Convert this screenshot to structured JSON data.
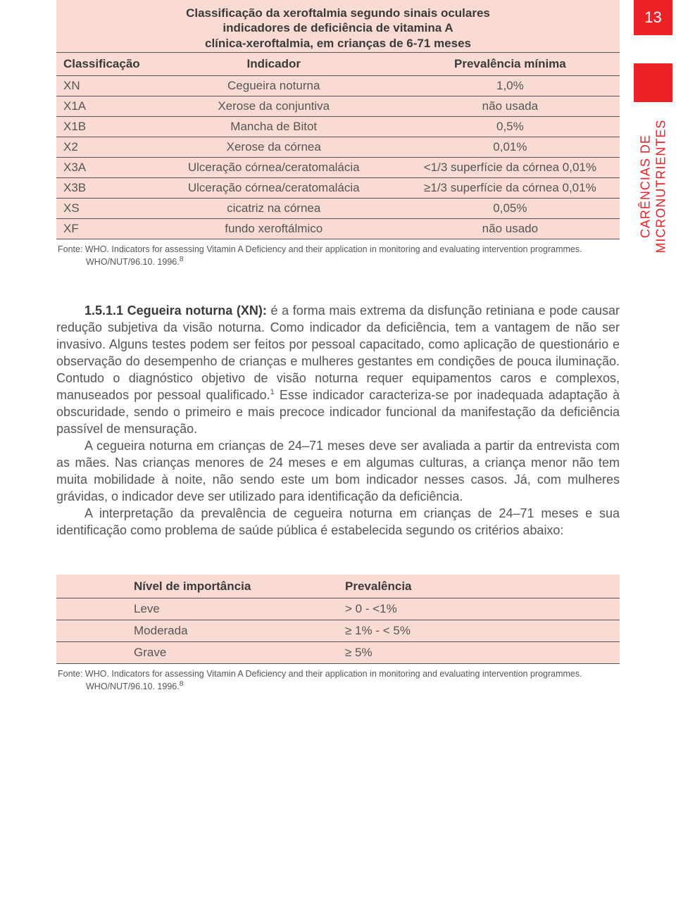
{
  "page_number": "13",
  "vertical_label": "CARÊNCIAS DE\nMICRONUTRIENTES",
  "colors": {
    "accent_red": "#ec2227",
    "table_bg": "#f9dbd3",
    "text_body": "#555555",
    "text_heading": "#3a3a3a",
    "border": "#555555",
    "page_bg": "#ffffff"
  },
  "typography": {
    "body_fontsize_pt": 14,
    "table_fontsize_pt": 13,
    "source_fontsize_pt": 9,
    "page_number_fontsize_pt": 16
  },
  "table1": {
    "title_line1": "Classificação da xeroftalmia segundo sinais oculares",
    "title_line2": "indicadores de deficiência de vitamina A",
    "title_line3": "clínica-xeroftalmia, em crianças de 6-71 meses",
    "columns": [
      "Classificação",
      "Indicador",
      "Prevalência mínima"
    ],
    "col_widths_pct": [
      14,
      46,
      40
    ],
    "rows": [
      [
        "XN",
        "Cegueira noturna",
        "1,0%"
      ],
      [
        "X1A",
        "Xerose da conjuntiva",
        "não usada"
      ],
      [
        "X1B",
        "Mancha de Bitot",
        "0,5%"
      ],
      [
        "X2",
        "Xerose da córnea",
        "0,01%"
      ],
      [
        "X3A",
        "Ulceração córnea/ceratomalácia",
        "<1/3 superfície da córnea 0,01%"
      ],
      [
        "X3B",
        "Ulceração córnea/ceratomalácia",
        "≥1/3 superfície da córnea 0,01%"
      ],
      [
        "XS",
        "cicatriz na córnea",
        "0,05%"
      ],
      [
        "XF",
        "fundo xeroftálmico",
        "não usado"
      ]
    ],
    "source_prefix": "Fonte: WHO. ",
    "source_main": "Indicators for assessing Vitamin A Deficiency and their application in monitoring and evaluating intervention programmes.",
    "source_line2": "WHO/NUT/96.10. 1996.",
    "source_sup": "8"
  },
  "body": {
    "p1_bold": "1.5.1.1 Cegueira noturna (XN):",
    "p1_rest": " é a forma mais extrema da disfunção retiniana e pode causar redução subjetiva da visão noturna. Como indicador da deficiência, tem a vantagem de não ser invasivo. Alguns testes podem ser feitos por pessoal capacitado, como aplicação de questionário e observação do desempenho de crianças e mulheres gestantes em condições de pouca iluminação. Contudo o diagnóstico objetivo de visão noturna requer equipamentos caros e complexos, manuseados por pessoal qualificado.",
    "p1_sup": "1",
    "p1_after_sup": " Esse indicador caracteriza-se por inadequada adaptação à obscuridade, sendo o primeiro e mais precoce indicador funcional da manifestação da deficiência passível de mensuração.",
    "p2": "A cegueira noturna em crianças de 24–71 meses deve ser avaliada a partir da entrevista com as mães. Nas crianças menores de 24 meses e em algumas culturas, a criança menor não tem muita mobilidade à noite, não sendo este um bom indicador nesses casos. Já, com mulheres grávidas, o indicador deve ser utilizado para identificação da deficiência.",
    "p3": "A interpretação da prevalência de cegueira noturna em crianças de 24–71 meses e sua identificação como problema de saúde pública é estabelecida segundo os critérios abaixo:"
  },
  "table2": {
    "columns": [
      "Nível de importância",
      "Prevalência"
    ],
    "rows": [
      [
        "Leve",
        "> 0 - <1%"
      ],
      [
        "Moderada",
        "≥ 1% - < 5%"
      ],
      [
        "Grave",
        "≥ 5%"
      ]
    ],
    "source_prefix": "Fonte: WHO. ",
    "source_main": "Indicators for assessing Vitamin A Deficiency and their application in monitoring and evaluating intervention programmes.",
    "source_line2": "WHO/NUT/96.10. 1996.",
    "source_sup": "8"
  }
}
